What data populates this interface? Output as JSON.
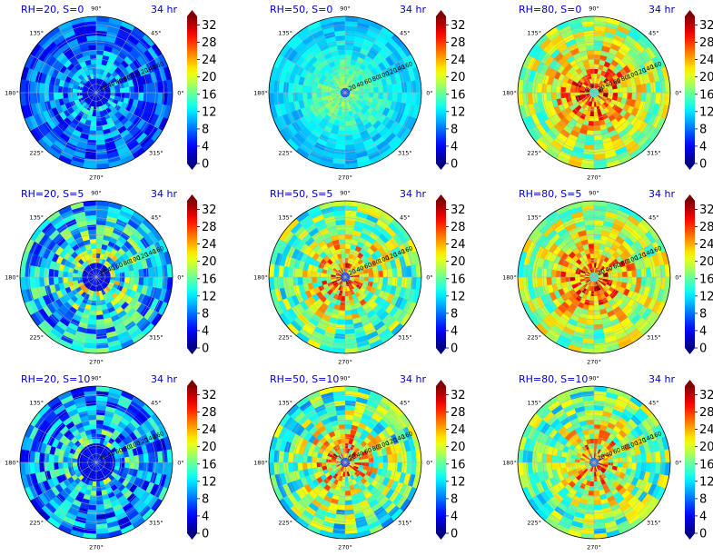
{
  "figure": {
    "time_label": "34 hr"
  },
  "chart_data": [
    {
      "type": "heatmap",
      "projection": "polar",
      "title_left": "RH=20, S=0",
      "title_right": "34 hr",
      "angular_ticks": [
        "0°",
        "45°",
        "90°",
        "135°",
        "180°",
        "225°",
        "270°",
        "315°"
      ],
      "radial_ticks": [
        "20",
        "40",
        "60",
        "80",
        "100",
        "120",
        "140",
        "160"
      ],
      "rlim": [
        0,
        180
      ],
      "colorbar": {
        "ticks": [
          "0",
          "4",
          "8",
          "12",
          "16",
          "20",
          "24",
          "28",
          "32"
        ],
        "range": [
          0,
          34
        ],
        "colormap": "jet",
        "extend": "both"
      },
      "center_value": 2,
      "value_range": [
        4,
        16
      ],
      "inner_core_radius": 30
    },
    {
      "type": "heatmap",
      "projection": "polar",
      "title_left": "RH=50, S=0",
      "title_right": "34 hr",
      "angular_ticks": [
        "0°",
        "45°",
        "90°",
        "135°",
        "180°",
        "225°",
        "270°",
        "315°"
      ],
      "radial_ticks": [
        "20",
        "40",
        "60",
        "80",
        "100",
        "120",
        "140",
        "160"
      ],
      "rlim": [
        0,
        180
      ],
      "colorbar": {
        "ticks": [
          "0",
          "4",
          "8",
          "12",
          "16",
          "20",
          "24",
          "28",
          "32"
        ],
        "range": [
          0,
          34
        ],
        "colormap": "jet",
        "extend": "both"
      },
      "center_value": 4,
      "value_range": [
        13,
        19
      ],
      "inner_core_radius": 10
    },
    {
      "type": "heatmap",
      "projection": "polar",
      "title_left": "RH=80, S=0",
      "title_right": "34 hr",
      "angular_ticks": [
        "0°",
        "45°",
        "90°",
        "135°",
        "180°",
        "225°",
        "270°",
        "315°"
      ],
      "radial_ticks": [
        "20",
        "40",
        "60",
        "80",
        "100",
        "120",
        "140",
        "160"
      ],
      "rlim": [
        0,
        180
      ],
      "colorbar": {
        "ticks": [
          "0",
          "4",
          "8",
          "12",
          "16",
          "20",
          "24",
          "28",
          "32"
        ],
        "range": [
          0,
          34
        ],
        "colormap": "jet",
        "extend": "both"
      },
      "center_value": 12,
      "value_range": [
        18,
        34
      ],
      "inner_core_radius": 8
    },
    {
      "type": "heatmap",
      "projection": "polar",
      "title_left": "RH=20, S=5",
      "title_right": "34 hr",
      "angular_ticks": [
        "0°",
        "45°",
        "90°",
        "135°",
        "180°",
        "225°",
        "270°",
        "315°"
      ],
      "radial_ticks": [
        "20",
        "40",
        "60",
        "80",
        "100",
        "120",
        "140",
        "160"
      ],
      "rlim": [
        0,
        180
      ],
      "colorbar": {
        "ticks": [
          "0",
          "4",
          "8",
          "12",
          "16",
          "20",
          "24",
          "28",
          "32"
        ],
        "range": [
          0,
          34
        ],
        "colormap": "jet",
        "extend": "both"
      },
      "center_value": 2,
      "value_range": [
        6,
        26
      ],
      "inner_core_radius": 30
    },
    {
      "type": "heatmap",
      "projection": "polar",
      "title_left": "RH=50, S=5",
      "title_right": "34 hr",
      "angular_ticks": [
        "0°",
        "45°",
        "90°",
        "135°",
        "180°",
        "225°",
        "270°",
        "315°"
      ],
      "radial_ticks": [
        "20",
        "40",
        "60",
        "80",
        "100",
        "120",
        "140",
        "160"
      ],
      "rlim": [
        0,
        180
      ],
      "colorbar": {
        "ticks": [
          "0",
          "4",
          "8",
          "12",
          "16",
          "20",
          "24",
          "28",
          "32"
        ],
        "range": [
          0,
          34
        ],
        "colormap": "jet",
        "extend": "both"
      },
      "center_value": 4,
      "value_range": [
        14,
        32
      ],
      "inner_core_radius": 10
    },
    {
      "type": "heatmap",
      "projection": "polar",
      "title_left": "RH=80, S=5",
      "title_right": "34 hr",
      "angular_ticks": [
        "0°",
        "45°",
        "90°",
        "135°",
        "180°",
        "225°",
        "270°",
        "315°"
      ],
      "radial_ticks": [
        "20",
        "40",
        "60",
        "80",
        "100",
        "120",
        "140",
        "160"
      ],
      "rlim": [
        0,
        180
      ],
      "colorbar": {
        "ticks": [
          "0",
          "4",
          "8",
          "12",
          "16",
          "20",
          "24",
          "28",
          "32"
        ],
        "range": [
          0,
          34
        ],
        "colormap": "jet",
        "extend": "both"
      },
      "center_value": 12,
      "value_range": [
        18,
        34
      ],
      "inner_core_radius": 8
    },
    {
      "type": "heatmap",
      "projection": "polar",
      "title_left": "RH=20, S=10",
      "title_right": "34 hr",
      "angular_ticks": [
        "0°",
        "45°",
        "90°",
        "135°",
        "180°",
        "225°",
        "270°",
        "315°"
      ],
      "radial_ticks": [
        "20",
        "40",
        "60",
        "80",
        "100",
        "120",
        "140",
        "160"
      ],
      "rlim": [
        0,
        180
      ],
      "colorbar": {
        "ticks": [
          "0",
          "4",
          "8",
          "12",
          "16",
          "20",
          "24",
          "28",
          "32"
        ],
        "range": [
          0,
          34
        ],
        "colormap": "jet",
        "extend": "both"
      },
      "center_value": 2,
      "value_range": [
        3,
        22
      ],
      "inner_core_radius": 40
    },
    {
      "type": "heatmap",
      "projection": "polar",
      "title_left": "RH=50, S=10",
      "title_right": "34 hr",
      "angular_ticks": [
        "0°",
        "45°",
        "90°",
        "135°",
        "180°",
        "225°",
        "270°",
        "315°"
      ],
      "radial_ticks": [
        "20",
        "40",
        "60",
        "80",
        "100",
        "120",
        "140",
        "160"
      ],
      "rlim": [
        0,
        180
      ],
      "colorbar": {
        "ticks": [
          "0",
          "4",
          "8",
          "12",
          "16",
          "20",
          "24",
          "28",
          "32"
        ],
        "range": [
          0,
          34
        ],
        "colormap": "jet",
        "extend": "both"
      },
      "center_value": 4,
      "value_range": [
        12,
        32
      ],
      "inner_core_radius": 10
    },
    {
      "type": "heatmap",
      "projection": "polar",
      "title_left": "RH=80, S=10",
      "title_right": "34 hr",
      "angular_ticks": [
        "0°",
        "45°",
        "90°",
        "135°",
        "180°",
        "225°",
        "270°",
        "315°"
      ],
      "radial_ticks": [
        "20",
        "40",
        "60",
        "80",
        "100",
        "120",
        "140",
        "160"
      ],
      "rlim": [
        0,
        180
      ],
      "colorbar": {
        "ticks": [
          "0",
          "4",
          "8",
          "12",
          "16",
          "20",
          "24",
          "28",
          "32"
        ],
        "range": [
          0,
          34
        ],
        "colormap": "jet",
        "extend": "both"
      },
      "center_value": 6,
      "value_range": [
        14,
        32
      ],
      "inner_core_radius": 8
    }
  ]
}
